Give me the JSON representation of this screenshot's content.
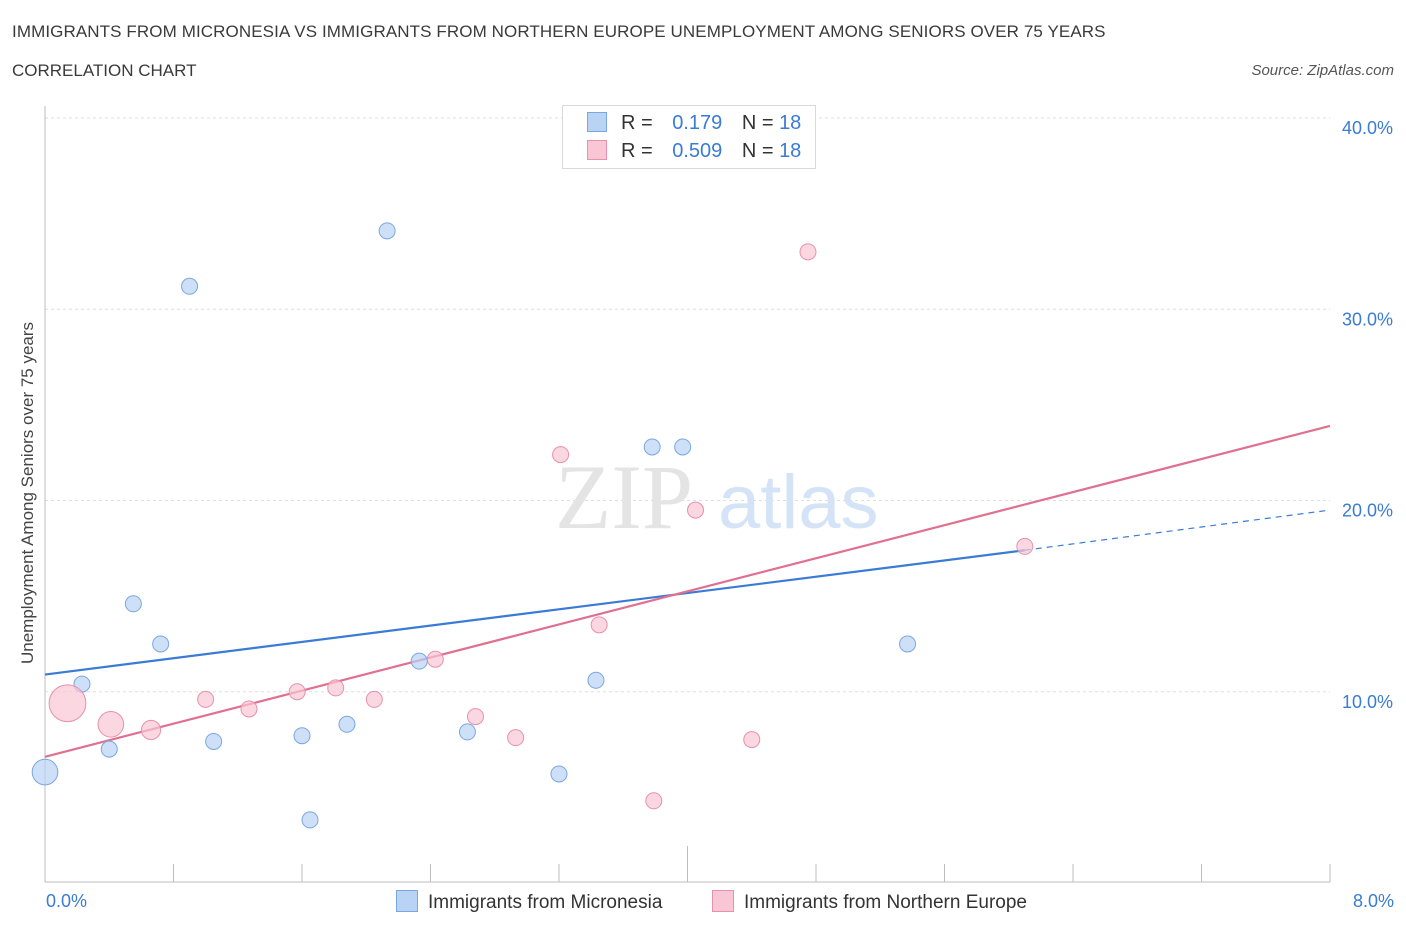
{
  "title": "IMMIGRANTS FROM MICRONESIA VS IMMIGRANTS FROM NORTHERN EUROPE UNEMPLOYMENT AMONG SENIORS OVER 75 YEARS",
  "subtitle": "CORRELATION CHART",
  "source": "Source: ZipAtlas.com",
  "watermark": {
    "zip": "ZIP",
    "atlas": "atlas"
  },
  "legend": {
    "r_label": "R =",
    "n_label": "N =",
    "rows": [
      {
        "r": "0.179",
        "n": "18"
      },
      {
        "r": "0.509",
        "n": "18"
      }
    ]
  },
  "colors": {
    "micronesia_fill": "#b8d3f4",
    "micronesia_stroke": "#7aa7e0",
    "micronesia_line": "#3a7bd5",
    "northern_europe_fill": "#f8c6d4",
    "northern_europe_stroke": "#e891ac",
    "northern_europe_line": "#e0708f",
    "axis_text": "#3a7bd5"
  },
  "chart_data": {
    "type": "scatter",
    "title": "IMMIGRANTS FROM MICRONESIA VS IMMIGRANTS FROM NORTHERN EUROPE UNEMPLOYMENT AMONG SENIORS OVER 75 YEARS",
    "xlabel": "",
    "ylabel": "Unemployment Among Seniors over 75 years",
    "xlim": [
      0,
      8
    ],
    "ylim": [
      0,
      40
    ],
    "x_tick_labels": [
      "0.0%",
      "8.0%"
    ],
    "y_tick_labels": [
      "40.0%",
      "30.0%",
      "20.0%",
      "10.0%"
    ],
    "y_ticks": [
      40,
      30,
      20,
      10
    ],
    "grid": true,
    "series": [
      {
        "name": "Immigrants from Micronesia",
        "points": [
          {
            "x": 0.0,
            "y": 5.8,
            "size": 1.6
          },
          {
            "x": 0.23,
            "y": 10.4,
            "size": 1
          },
          {
            "x": 0.4,
            "y": 7.0,
            "size": 1
          },
          {
            "x": 0.55,
            "y": 14.6,
            "size": 1
          },
          {
            "x": 0.72,
            "y": 12.5,
            "size": 1
          },
          {
            "x": 0.9,
            "y": 31.2,
            "size": 1
          },
          {
            "x": 1.05,
            "y": 7.4,
            "size": 1
          },
          {
            "x": 1.6,
            "y": 7.7,
            "size": 1
          },
          {
            "x": 1.65,
            "y": 3.3,
            "size": 1
          },
          {
            "x": 1.88,
            "y": 8.3,
            "size": 1
          },
          {
            "x": 2.13,
            "y": 34.1,
            "size": 1
          },
          {
            "x": 2.33,
            "y": 11.6,
            "size": 1
          },
          {
            "x": 2.63,
            "y": 7.9,
            "size": 1
          },
          {
            "x": 3.2,
            "y": 5.7,
            "size": 1
          },
          {
            "x": 3.43,
            "y": 10.6,
            "size": 1
          },
          {
            "x": 3.78,
            "y": 22.8,
            "size": 1
          },
          {
            "x": 3.97,
            "y": 22.8,
            "size": 1
          },
          {
            "x": 5.37,
            "y": 12.5,
            "size": 1
          }
        ],
        "trend": {
          "x": [
            0,
            6.1
          ],
          "y": [
            10.9,
            17.4
          ]
        },
        "trend_dashed": {
          "x": [
            6.1,
            8.0
          ],
          "y": [
            17.4,
            19.5
          ]
        }
      },
      {
        "name": "Immigrants from Northern Europe",
        "points": [
          {
            "x": 0.14,
            "y": 9.4,
            "size": 2.3
          },
          {
            "x": 0.41,
            "y": 8.3,
            "size": 1.6
          },
          {
            "x": 0.66,
            "y": 8.0,
            "size": 1.2
          },
          {
            "x": 1.0,
            "y": 9.6,
            "size": 1
          },
          {
            "x": 1.27,
            "y": 9.1,
            "size": 1
          },
          {
            "x": 1.57,
            "y": 10.0,
            "size": 1
          },
          {
            "x": 1.81,
            "y": 10.2,
            "size": 1
          },
          {
            "x": 2.05,
            "y": 9.6,
            "size": 1
          },
          {
            "x": 2.43,
            "y": 11.7,
            "size": 1
          },
          {
            "x": 2.68,
            "y": 8.7,
            "size": 1
          },
          {
            "x": 2.93,
            "y": 7.6,
            "size": 1
          },
          {
            "x": 3.21,
            "y": 22.4,
            "size": 1
          },
          {
            "x": 3.45,
            "y": 13.5,
            "size": 1
          },
          {
            "x": 3.79,
            "y": 4.3,
            "size": 1
          },
          {
            "x": 4.05,
            "y": 19.5,
            "size": 1
          },
          {
            "x": 4.4,
            "y": 7.5,
            "size": 1
          },
          {
            "x": 4.75,
            "y": 33.0,
            "size": 1
          },
          {
            "x": 6.1,
            "y": 17.6,
            "size": 1
          }
        ],
        "trend": {
          "x": [
            0,
            8.0
          ],
          "y": [
            6.6,
            23.9
          ]
        }
      }
    ]
  }
}
